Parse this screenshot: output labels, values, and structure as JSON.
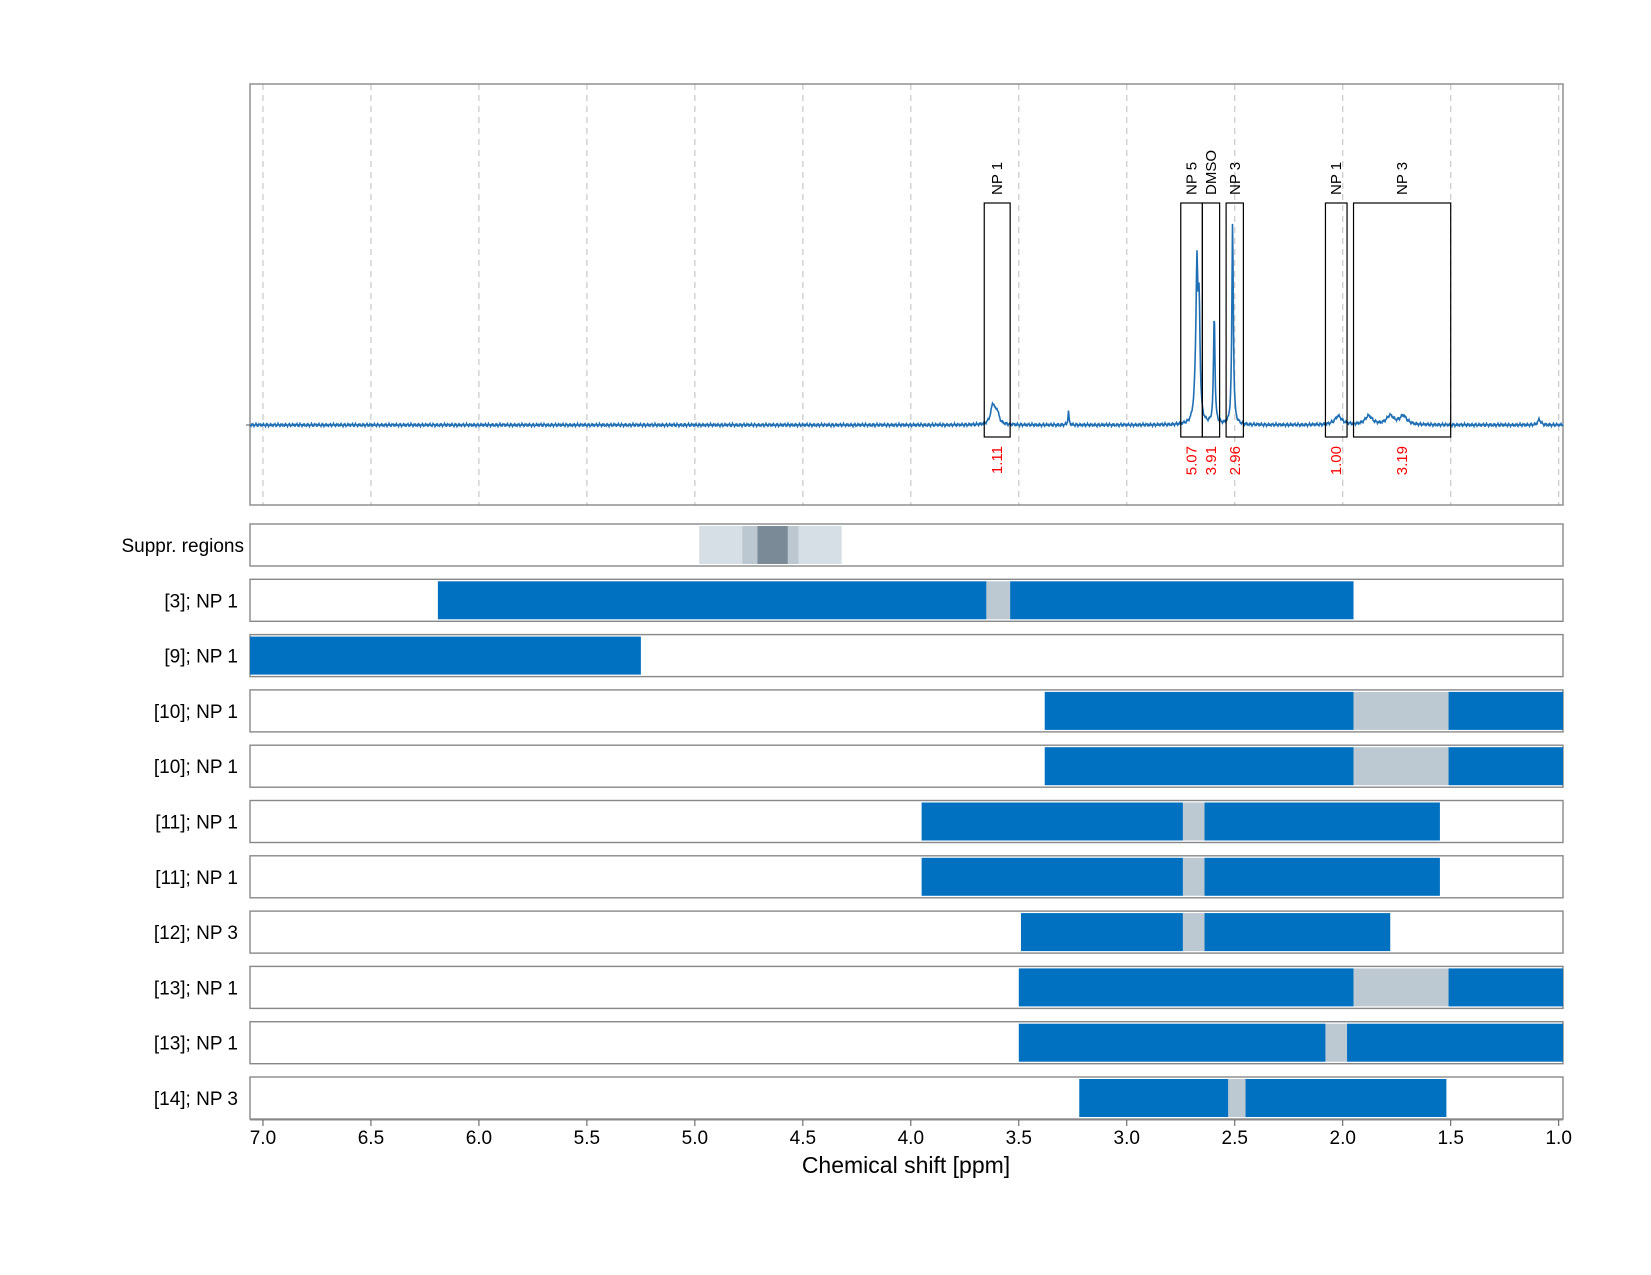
{
  "chart_data": {
    "type": "nmr-spectrum-with-region-bars",
    "xlabel": "Chemical shift [ppm]",
    "xlim": [
      7.06,
      0.98
    ],
    "x_ticks": [
      7.0,
      6.5,
      6.0,
      5.5,
      5.0,
      4.5,
      4.0,
      3.5,
      3.0,
      2.5,
      2.0,
      1.5,
      1.0
    ],
    "x_tick_labels": [
      "7.0",
      "6.5",
      "6.0",
      "5.5",
      "5.0",
      "4.5",
      "4.0",
      "3.5",
      "3.0",
      "2.5",
      "2.0",
      "1.5",
      "1.0"
    ],
    "grid": "dashed vertical",
    "colors": {
      "spectrum": "#1f6fb4",
      "region_bar": "#0070c0",
      "overlap_bar": "#bdc9d2",
      "integral_label": "#ff0000",
      "suppression_light": "#d7dfe6",
      "suppression_mid": "#bcc8d1",
      "suppression_dark": "#7a8b97"
    },
    "spectrum": {
      "baseline": 0,
      "peaks": [
        {
          "ppm": 3.62,
          "height": 0.09,
          "width": 0.012
        },
        {
          "ppm": 3.6,
          "height": 0.05,
          "width": 0.01
        },
        {
          "ppm": 3.27,
          "height": 0.06,
          "width": 0.003
        },
        {
          "ppm": 2.675,
          "height": 0.6,
          "width": 0.005
        },
        {
          "ppm": 2.665,
          "height": 0.48,
          "width": 0.005
        },
        {
          "ppm": 2.68,
          "height": 0.12,
          "width": 0.01
        },
        {
          "ppm": 2.595,
          "height": 0.5,
          "width": 0.004
        },
        {
          "ppm": 2.51,
          "height": 0.92,
          "width": 0.004
        },
        {
          "ppm": 2.02,
          "height": 0.04,
          "width": 0.02
        },
        {
          "ppm": 1.88,
          "height": 0.04,
          "width": 0.02
        },
        {
          "ppm": 1.78,
          "height": 0.04,
          "width": 0.02
        },
        {
          "ppm": 1.72,
          "height": 0.04,
          "width": 0.02
        },
        {
          "ppm": 1.09,
          "height": 0.025,
          "width": 0.008
        }
      ],
      "integration_boxes": [
        {
          "label": "NP 1",
          "value": "1.11",
          "from": 3.66,
          "to": 3.54
        },
        {
          "label": "NP 5",
          "value": "5.07",
          "from": 2.75,
          "to": 2.65
        },
        {
          "label": "DMSO",
          "value": "3.91",
          "from": 2.65,
          "to": 2.57
        },
        {
          "label": "NP 3",
          "value": "2.96",
          "from": 2.54,
          "to": 2.46
        },
        {
          "label": "NP 1",
          "value": "1.00",
          "from": 2.08,
          "to": 1.98
        },
        {
          "label": "NP 3",
          "value": "3.19",
          "from": 1.95,
          "to": 1.5
        }
      ]
    },
    "suppression": {
      "label": "Suppr. regions",
      "bands": [
        {
          "from": 4.98,
          "to": 4.32,
          "shade": "light"
        },
        {
          "from": 4.78,
          "to": 4.52,
          "shade": "mid"
        },
        {
          "from": 4.71,
          "to": 4.57,
          "shade": "dark"
        }
      ]
    },
    "rows": [
      {
        "label": "[3]; NP 1",
        "segments": [
          [
            6.19,
            3.65,
            "region"
          ],
          [
            3.65,
            3.54,
            "overlap"
          ],
          [
            3.54,
            1.95,
            "region"
          ]
        ]
      },
      {
        "label": "[9]; NP 1",
        "segments": [
          [
            7.06,
            5.25,
            "region"
          ]
        ]
      },
      {
        "label": "[10]; NP 1",
        "segments": [
          [
            3.38,
            1.95,
            "region"
          ],
          [
            1.95,
            1.51,
            "overlap"
          ],
          [
            1.51,
            0.98,
            "region"
          ]
        ]
      },
      {
        "label": "[10]; NP 1",
        "segments": [
          [
            3.38,
            1.95,
            "region"
          ],
          [
            1.95,
            1.51,
            "overlap"
          ],
          [
            1.51,
            0.98,
            "region"
          ]
        ]
      },
      {
        "label": "[11]; NP 1",
        "segments": [
          [
            3.95,
            2.74,
            "region"
          ],
          [
            2.74,
            2.64,
            "overlap"
          ],
          [
            2.64,
            1.55,
            "region"
          ]
        ]
      },
      {
        "label": "[11]; NP 1",
        "segments": [
          [
            3.95,
            2.74,
            "region"
          ],
          [
            2.74,
            2.64,
            "overlap"
          ],
          [
            2.64,
            1.55,
            "region"
          ]
        ]
      },
      {
        "label": "[12]; NP 3",
        "segments": [
          [
            3.49,
            2.74,
            "region"
          ],
          [
            2.74,
            2.64,
            "overlap"
          ],
          [
            2.64,
            1.78,
            "region"
          ]
        ]
      },
      {
        "label": "[13]; NP 1",
        "segments": [
          [
            3.5,
            1.95,
            "region"
          ],
          [
            1.95,
            1.51,
            "overlap"
          ],
          [
            1.51,
            0.98,
            "region"
          ]
        ]
      },
      {
        "label": "[13]; NP 1",
        "segments": [
          [
            3.5,
            2.08,
            "region"
          ],
          [
            2.08,
            1.98,
            "overlap"
          ],
          [
            1.98,
            0.98,
            "region"
          ]
        ]
      },
      {
        "label": "[14]; NP 3",
        "segments": [
          [
            3.22,
            2.53,
            "region"
          ],
          [
            2.53,
            2.45,
            "overlap"
          ],
          [
            2.45,
            1.52,
            "region"
          ]
        ]
      }
    ]
  }
}
